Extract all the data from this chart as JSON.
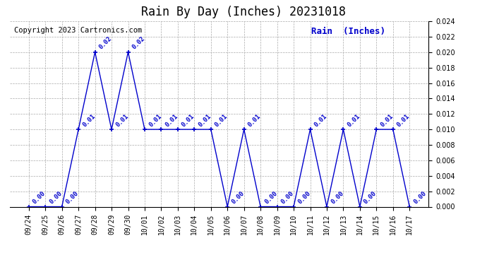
{
  "title": "Rain By Day (Inches) 20231018",
  "copyright_text": "Copyright 2023 Cartronics.com",
  "legend_label": "Rain  (Inches)",
  "dates": [
    "09/24",
    "09/25",
    "09/26",
    "09/27",
    "09/28",
    "09/29",
    "09/30",
    "10/01",
    "10/02",
    "10/03",
    "10/04",
    "10/05",
    "10/06",
    "10/07",
    "10/08",
    "10/09",
    "10/10",
    "10/11",
    "10/12",
    "10/13",
    "10/14",
    "10/15",
    "10/16",
    "10/17"
  ],
  "values": [
    0.0,
    0.0,
    0.0,
    0.01,
    0.02,
    0.01,
    0.02,
    0.01,
    0.01,
    0.01,
    0.01,
    0.01,
    0.0,
    0.01,
    0.0,
    0.0,
    0.0,
    0.01,
    0.0,
    0.01,
    0.0,
    0.01,
    0.01,
    0.0
  ],
  "line_color": "#0000cc",
  "marker_color": "#0000cc",
  "annotation_color": "#0000cc",
  "bg_color": "#ffffff",
  "grid_color": "#aaaaaa",
  "ylim": [
    0.0,
    0.024
  ],
  "yticks": [
    0.0,
    0.002,
    0.004,
    0.006,
    0.008,
    0.01,
    0.012,
    0.014,
    0.016,
    0.018,
    0.02,
    0.022,
    0.024
  ],
  "title_fontsize": 12,
  "copyright_fontsize": 7.5,
  "legend_fontsize": 9,
  "annotation_fontsize": 6.5,
  "tick_fontsize": 7,
  "ylabel_fontsize": 7
}
